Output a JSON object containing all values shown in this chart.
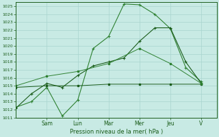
{
  "xlabel": "Pression niveau de la mer( hPa )",
  "bg_color": "#c8eae4",
  "grid_color": "#a8d4ce",
  "dark_green": "#1a5c1a",
  "light_green": "#2d8030",
  "ylim": [
    1011,
    1025.5
  ],
  "ytick_min": 1011,
  "ytick_max": 1025,
  "xlim_min": 0,
  "xlim_max": 13,
  "day_labels": [
    "Sam",
    "Lun",
    "Mar",
    "Mer",
    "Jeu",
    "V"
  ],
  "day_positions": [
    2,
    4,
    6,
    8,
    10,
    12
  ],
  "line1_x": [
    0,
    1,
    2,
    3,
    4,
    5,
    6,
    7,
    8,
    9,
    10,
    11,
    12
  ],
  "line1_y": [
    1012.3,
    1013.0,
    1014.8,
    1011.2,
    1013.2,
    1019.7,
    1021.2,
    1025.3,
    1025.2,
    1024.0,
    1022.2,
    1017.3,
    1015.5
  ],
  "line2_x": [
    0,
    1,
    2,
    3,
    4,
    5,
    6,
    7,
    8,
    9,
    10,
    11,
    12
  ],
  "line2_y": [
    1012.2,
    1014.0,
    1015.3,
    1014.8,
    1016.3,
    1017.5,
    1018.0,
    1018.5,
    1020.6,
    1022.3,
    1022.3,
    1018.0,
    1015.3
  ],
  "line3_x": [
    0,
    2,
    4,
    6,
    8,
    10,
    12
  ],
  "line3_y": [
    1014.8,
    1015.0,
    1015.0,
    1015.2,
    1015.2,
    1015.2,
    1015.2
  ],
  "line4_x": [
    0,
    2,
    4,
    6,
    8,
    10,
    12
  ],
  "line4_y": [
    1015.0,
    1016.2,
    1016.8,
    1017.8,
    1019.7,
    1017.8,
    1015.3
  ]
}
